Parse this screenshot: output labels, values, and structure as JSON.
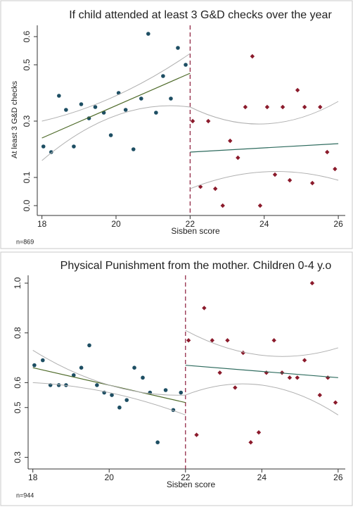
{
  "chart_data": [
    {
      "type": "scatter",
      "title": "If child attended at least 3 G&D checks over the year",
      "xlabel": "Sisben score",
      "ylabel": "At least 3 G&D checks",
      "note": "n=869",
      "xlim": [
        17.95,
        26.15
      ],
      "xticks": [
        18,
        20,
        22,
        24,
        26
      ],
      "ylim": [
        -0.02,
        0.63
      ],
      "yticks": [
        {
          "value": 0,
          "label": "0.0"
        },
        0.1,
        0.3,
        0.5,
        0.6
      ],
      "cutoff": 22,
      "cutoff_color": "#8b1a3a",
      "series": [
        {
          "kind": "points",
          "marker": "circle",
          "color": "#1d4e63",
          "x": [
            18.04,
            18.25,
            18.46,
            18.65,
            18.86,
            19.06,
            19.27,
            19.44,
            19.67,
            19.86,
            20.07,
            20.26,
            20.47,
            20.68,
            20.87,
            21.08,
            21.27,
            21.48,
            21.67,
            21.88
          ],
          "values": [
            0.21,
            0.19,
            0.39,
            0.34,
            0.21,
            0.36,
            0.31,
            0.35,
            0.33,
            0.25,
            0.4,
            0.34,
            0.2,
            0.38,
            0.61,
            0.33,
            0.46,
            0.38,
            0.56,
            0.5
          ]
        },
        {
          "kind": "points",
          "marker": "diamond",
          "color": "#8b1a2b",
          "x": [
            22.07,
            22.28,
            22.49,
            22.68,
            22.88,
            23.08,
            23.29,
            23.49,
            23.68,
            23.89,
            24.08,
            24.29,
            24.5,
            24.69,
            24.9,
            25.09,
            25.3,
            25.51,
            25.7,
            25.91
          ],
          "values": [
            0.3,
            0.067,
            0.3,
            0.06,
            0.0,
            0.23,
            0.17,
            0.35,
            0.53,
            0.0,
            0.35,
            0.11,
            0.35,
            0.09,
            0.41,
            0.35,
            0.08,
            0.35,
            0.19,
            0.13
          ]
        },
        {
          "kind": "line",
          "color": "#4f6b2a",
          "x": [
            18,
            22
          ],
          "values": [
            0.24,
            0.47
          ]
        },
        {
          "kind": "line",
          "color": "#2e6b5e",
          "x": [
            22,
            26
          ],
          "values": [
            0.19,
            0.22
          ]
        },
        {
          "kind": "curve",
          "color": "#b0b0b0",
          "x": [
            18,
            20,
            22
          ],
          "values": [
            0.3,
            0.39,
            0.54
          ]
        },
        {
          "kind": "curve",
          "color": "#b0b0b0",
          "x": [
            18,
            20,
            22
          ],
          "values": [
            0.16,
            0.32,
            0.35
          ]
        },
        {
          "kind": "curve",
          "color": "#b0b0b0",
          "x": [
            22,
            24,
            26
          ],
          "values": [
            0.35,
            0.29,
            0.37
          ]
        },
        {
          "kind": "curve",
          "color": "#b0b0b0",
          "x": [
            22,
            24,
            26
          ],
          "values": [
            0.06,
            0.12,
            0.09
          ]
        }
      ]
    },
    {
      "type": "scatter",
      "title": "Physical Punishment from the mother. Children 0-4 y.o",
      "xlabel": "Sisben score",
      "note": "n=944",
      "xlim": [
        17.95,
        26.15
      ],
      "xticks": [
        18,
        20,
        22,
        24,
        26
      ],
      "ylim": [
        0.27,
        1.02
      ],
      "yticks": [
        0.3,
        0.5,
        0.6,
        0.8,
        {
          "value": 1,
          "label": "1.0"
        }
      ],
      "cutoff": 22,
      "cutoff_color": "#8b1a3a",
      "series": [
        {
          "kind": "points",
          "marker": "circle",
          "color": "#1d4e63",
          "x": [
            18.04,
            18.26,
            18.46,
            18.68,
            18.87,
            19.07,
            19.27,
            19.48,
            19.68,
            19.87,
            20.07,
            20.27,
            20.46,
            20.66,
            20.88,
            21.07,
            21.27,
            21.48,
            21.68,
            21.88
          ],
          "values": [
            0.67,
            0.69,
            0.59,
            0.59,
            0.59,
            0.63,
            0.66,
            0.75,
            0.59,
            0.56,
            0.55,
            0.5,
            0.53,
            0.66,
            0.62,
            0.56,
            0.36,
            0.57,
            0.49,
            0.56
          ]
        },
        {
          "kind": "points",
          "marker": "diamond",
          "color": "#8b1a2b",
          "x": [
            22.08,
            22.29,
            22.49,
            22.7,
            22.9,
            23.1,
            23.3,
            23.51,
            23.71,
            23.92,
            24.12,
            24.32,
            24.53,
            24.73,
            24.93,
            25.12,
            25.32,
            25.52,
            25.73,
            25.93
          ],
          "values": [
            0.77,
            0.39,
            0.9,
            0.77,
            0.64,
            0.77,
            0.58,
            0.72,
            0.36,
            0.4,
            0.64,
            0.77,
            0.64,
            0.62,
            0.62,
            0.69,
            1.0,
            0.55,
            0.62,
            0.52
          ]
        },
        {
          "kind": "line",
          "color": "#4f6b2a",
          "x": [
            18,
            22
          ],
          "values": [
            0.66,
            0.52
          ]
        },
        {
          "kind": "line",
          "color": "#2e6b5e",
          "x": [
            22,
            26
          ],
          "values": [
            0.67,
            0.62
          ]
        },
        {
          "kind": "curve",
          "color": "#b0b0b0",
          "x": [
            18,
            20,
            22
          ],
          "values": [
            0.73,
            0.59,
            0.55
          ]
        },
        {
          "kind": "curve",
          "color": "#b0b0b0",
          "x": [
            18,
            20,
            22
          ],
          "values": [
            0.6,
            0.56,
            0.47
          ]
        },
        {
          "kind": "curve",
          "color": "#b0b0b0",
          "x": [
            22,
            24,
            26
          ],
          "values": [
            0.81,
            0.71,
            0.74
          ]
        },
        {
          "kind": "curve",
          "color": "#b0b0b0",
          "x": [
            22,
            24,
            26
          ],
          "values": [
            0.55,
            0.59,
            0.47
          ]
        }
      ]
    }
  ]
}
